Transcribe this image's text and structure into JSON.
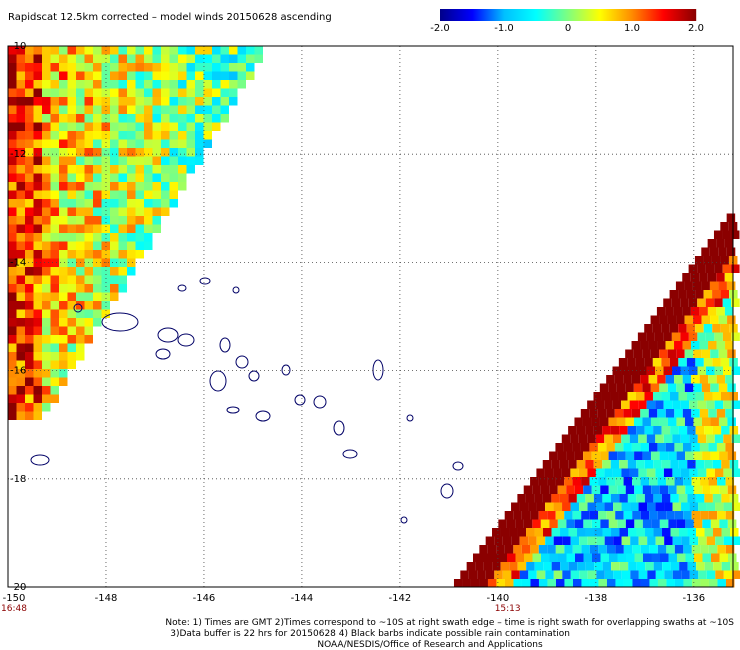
{
  "chart_data": {
    "type": "heatmap",
    "title": "Rapidscat 12.5km corrected – model winds 20150628 ascending",
    "colorbar": {
      "range": [
        -2.0,
        2.0
      ],
      "tick_labels": [
        "-2.0",
        "-1.0",
        "0",
        "1.0",
        "2.0"
      ],
      "tick_values": [
        -2.0,
        -1.0,
        0,
        1.0,
        2.0
      ],
      "colors": [
        "#00008b",
        "#0000ff",
        "#00bfff",
        "#00ffff",
        "#7fff7f",
        "#ffff00",
        "#ff8c00",
        "#ff0000",
        "#8b0000"
      ]
    },
    "x_axis": {
      "range": [
        -150,
        -135.2
      ],
      "tick_values": [
        -150,
        -148,
        -146,
        -144,
        -142,
        -140,
        -138,
        -136
      ],
      "tick_labels": [
        "-150",
        "-148",
        "-146",
        "-144",
        "-142",
        "-140",
        "-138",
        "-136"
      ]
    },
    "y_axis": {
      "range": [
        -20,
        -10
      ],
      "tick_values": [
        -10,
        -12,
        -14,
        -16,
        -18,
        -20
      ],
      "tick_labels": [
        "-10",
        "-12",
        "-14",
        "-16",
        "-18",
        "-20"
      ]
    },
    "grid": true,
    "swath_times": [
      {
        "label": "16:48",
        "x": -150
      },
      {
        "label": "15:13",
        "x": -139.8
      }
    ]
  },
  "notes": {
    "line1": "Note: 1) Times are GMT 2)Times correspond to ~10S at right swath edge – time is right swath for overlapping swaths at ~10S",
    "line2": "3)Data buffer is 22 hrs for 20150628 4) Black barbs indicate possible rain contamination",
    "line3": "NOAA/NESDIS/Office of Research and Applications"
  }
}
